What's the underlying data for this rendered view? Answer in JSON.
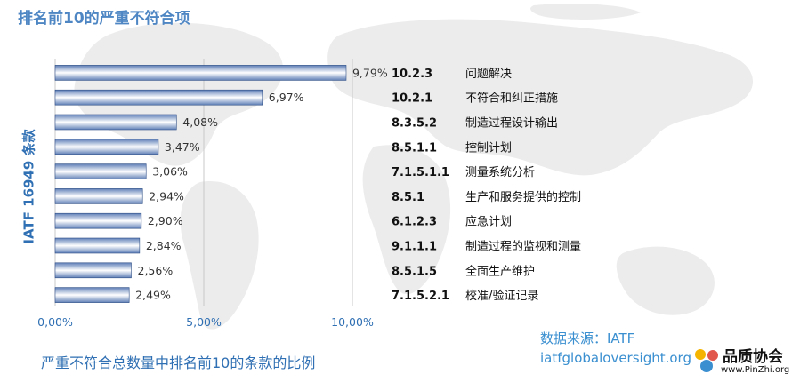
{
  "page": {
    "title": "排名前10的严重不符合项",
    "y_axis_title": "IATF 16949 条款",
    "footnote": "严重不符合总数量中排名前10的条款的比例",
    "source_label": "数据来源：IATF",
    "source_url": "iatfglobaloversight.org"
  },
  "watermark": {
    "name": "品质协会",
    "url": "www.PinZhi.org"
  },
  "colors": {
    "title": "#4e86c4",
    "axis_title": "#2f6fb3",
    "source": "#3a8fd0",
    "bar_dark": "#5f7fb7",
    "bar_light": "#ffffff",
    "bar_border": "#2f4f86",
    "grid": "#c8c8c8",
    "map": "#ececec"
  },
  "chart_data": {
    "type": "bar",
    "orientation": "horizontal",
    "xlim": [
      0,
      10
    ],
    "xticks": [
      "0,00%",
      "5,00%",
      "10,00%"
    ],
    "grid": true,
    "categories": [
      "10.2.3",
      "10.2.1",
      "8.3.5.2",
      "8.5.1.1",
      "7.1.5.1.1",
      "8.5.1",
      "6.1.2.3",
      "9.1.1.1",
      "8.5.1.5",
      "7.1.5.2.1"
    ],
    "descriptions": [
      "问题解决",
      "不符合和纠正措施",
      "制造过程设计输出",
      "控制计划",
      "测量系统分析",
      "生产和服务提供的控制",
      "应急计划",
      "制造过程的监视和测量",
      "全面生产维护",
      "校准/验证记录"
    ],
    "values": [
      9.79,
      6.97,
      4.08,
      3.47,
      3.06,
      2.94,
      2.9,
      2.84,
      2.56,
      2.49
    ],
    "value_labels": [
      "9,79%",
      "6,97%",
      "4,08%",
      "3,47%",
      "3,06%",
      "2,94%",
      "2,90%",
      "2,84%",
      "2,56%",
      "2,49%"
    ]
  }
}
